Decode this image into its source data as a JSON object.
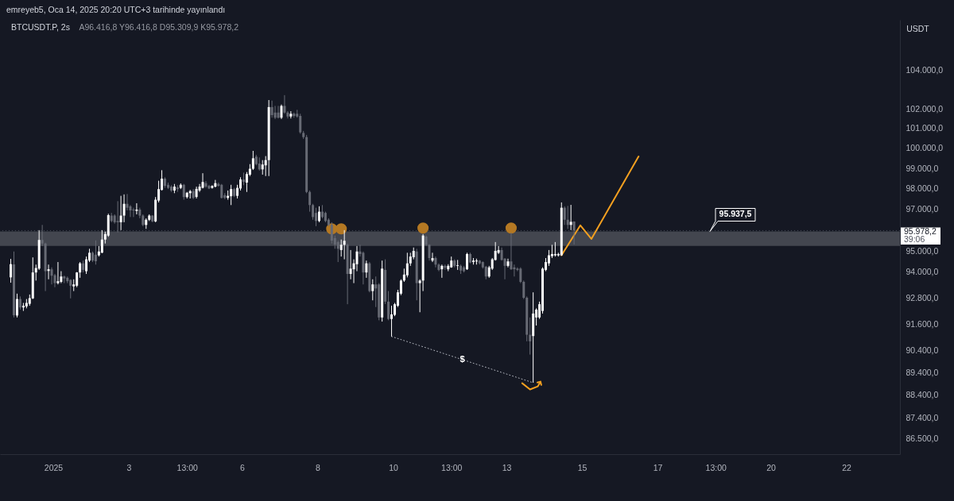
{
  "chart_data": {
    "type": "candlestick",
    "title": "BTCUSDT.P, 2s",
    "subtitle": "A96.416,8 Y96.416,8 D95.309,9 K95.978,2",
    "ylabel": "USDT",
    "annotations": [
      "emreyeb5, Oca 14, 2025 20:20 UTC+3 tarihinde yayınlandı",
      {
        "text": "95.937,5",
        "x": "2025-01-18T09:20",
        "y": 95937.5
      }
    ],
    "xlim": [
      "2024-12-30T14:09",
      "2025-01-23T10:06"
    ],
    "xticks": [
      {
        "value": "2025-01-01T00:00",
        "label": "2025"
      },
      {
        "value": "2025-01-03T00:00",
        "label": "3"
      },
      {
        "value": "2025-01-04T13:00",
        "label": "13:00"
      },
      {
        "value": "2025-01-06T00:00",
        "label": "6"
      },
      {
        "value": "2025-01-08T00:00",
        "label": "8"
      },
      {
        "value": "2025-01-10T00:00",
        "label": "10"
      },
      {
        "value": "2025-01-11T13:00",
        "label": "13:00"
      },
      {
        "value": "2025-01-13T00:00",
        "label": "13"
      },
      {
        "value": "2025-01-15T00:00",
        "label": "15"
      },
      {
        "value": "2025-01-17T00:00",
        "label": "17"
      },
      {
        "value": "2025-01-18T13:00",
        "label": "13:00"
      },
      {
        "value": "2025-01-20T00:00",
        "label": "20"
      },
      {
        "value": "2025-01-22T00:00",
        "label": "22"
      }
    ],
    "ylim": [
      85830,
      106640
    ],
    "yticks": [
      {
        "value": 86500,
        "label": "86.500,0"
      },
      {
        "value": 87400,
        "label": "87.400,0"
      },
      {
        "value": 88400,
        "label": "88.400,0"
      },
      {
        "value": 89400,
        "label": "89.400,0"
      },
      {
        "value": 90400,
        "label": "90.400,0"
      },
      {
        "value": 91600,
        "label": "91.600,0"
      },
      {
        "value": 92800,
        "label": "92.800,0"
      },
      {
        "value": 94000,
        "label": "94.000,0"
      },
      {
        "value": 95000,
        "label": "95.000,0"
      },
      {
        "value": 97000,
        "label": "97.000,0"
      },
      {
        "value": 98000,
        "label": "98.000,0"
      },
      {
        "value": 99000,
        "label": "99.000,0"
      },
      {
        "value": 100000,
        "label": "100.000,0"
      },
      {
        "value": 101000,
        "label": "101.000,0"
      },
      {
        "value": 102000,
        "label": "102.000,0"
      },
      {
        "value": 104000,
        "label": "104.000,0"
      }
    ],
    "log": "y",
    "series": [
      {
        "x": [
          "2024-12-30T21:00",
          "2024-12-30T23:00",
          "2024-12-31T01:00",
          "2024-12-31T03:00",
          "2024-12-31T05:00",
          "2024-12-31T07:00",
          "2024-12-31T09:00",
          "2024-12-31T11:00",
          "2024-12-31T13:00",
          "2024-12-31T15:00",
          "2024-12-31T17:00",
          "2024-12-31T19:00",
          "2024-12-31T21:00",
          "2024-12-31T23:00",
          "2025-01-01T01:00",
          "2025-01-01T03:00",
          "2025-01-01T05:00",
          "2025-01-01T07:00",
          "2025-01-01T09:00",
          "2025-01-01T11:00",
          "2025-01-01T13:00",
          "2025-01-01T15:00",
          "2025-01-01T17:00",
          "2025-01-01T19:00",
          "2025-01-01T21:00",
          "2025-01-01T23:00",
          "2025-01-02T01:00",
          "2025-01-02T03:00",
          "2025-01-02T05:00",
          "2025-01-02T07:00",
          "2025-01-02T09:00",
          "2025-01-02T11:00",
          "2025-01-02T13:00",
          "2025-01-02T15:00",
          "2025-01-02T17:00",
          "2025-01-02T19:00",
          "2025-01-02T21:00",
          "2025-01-02T23:00",
          "2025-01-03T01:00",
          "2025-01-03T03:00",
          "2025-01-03T05:00",
          "2025-01-03T07:00",
          "2025-01-03T09:00",
          "2025-01-03T11:00",
          "2025-01-03T13:00",
          "2025-01-03T15:00",
          "2025-01-03T17:00",
          "2025-01-03T19:00",
          "2025-01-03T21:00",
          "2025-01-03T23:00",
          "2025-01-04T01:00",
          "2025-01-04T03:00",
          "2025-01-04T05:00",
          "2025-01-04T07:00",
          "2025-01-04T09:00",
          "2025-01-04T11:00",
          "2025-01-04T13:00",
          "2025-01-04T15:00",
          "2025-01-04T17:00",
          "2025-01-04T19:00",
          "2025-01-04T21:00",
          "2025-01-04T23:00",
          "2025-01-05T01:00",
          "2025-01-05T03:00",
          "2025-01-05T05:00",
          "2025-01-05T07:00",
          "2025-01-05T09:00",
          "2025-01-05T11:00",
          "2025-01-05T13:00",
          "2025-01-05T15:00",
          "2025-01-05T17:00",
          "2025-01-05T19:00",
          "2025-01-05T21:00",
          "2025-01-05T23:00",
          "2025-01-06T01:00",
          "2025-01-06T03:00",
          "2025-01-06T05:00",
          "2025-01-06T07:00",
          "2025-01-06T09:00",
          "2025-01-06T11:00",
          "2025-01-06T13:00",
          "2025-01-06T15:00",
          "2025-01-06T17:00",
          "2025-01-06T19:00",
          "2025-01-06T21:00",
          "2025-01-06T23:00",
          "2025-01-07T01:00",
          "2025-01-07T03:00",
          "2025-01-07T05:00",
          "2025-01-07T07:00",
          "2025-01-07T09:00",
          "2025-01-07T11:00",
          "2025-01-07T13:00",
          "2025-01-07T15:00",
          "2025-01-07T17:00",
          "2025-01-07T19:00",
          "2025-01-07T21:00",
          "2025-01-07T23:00",
          "2025-01-08T01:00",
          "2025-01-08T03:00",
          "2025-01-08T05:00",
          "2025-01-08T07:00",
          "2025-01-08T09:00",
          "2025-01-08T11:00",
          "2025-01-08T13:00",
          "2025-01-08T15:00",
          "2025-01-08T17:00",
          "2025-01-08T19:00",
          "2025-01-08T21:00",
          "2025-01-08T23:00",
          "2025-01-09T01:00",
          "2025-01-09T03:00",
          "2025-01-09T05:00",
          "2025-01-09T07:00",
          "2025-01-09T09:00",
          "2025-01-09T11:00",
          "2025-01-09T13:00",
          "2025-01-09T15:00",
          "2025-01-09T17:00",
          "2025-01-09T19:00",
          "2025-01-09T21:00",
          "2025-01-09T23:00",
          "2025-01-10T01:00",
          "2025-01-10T03:00",
          "2025-01-10T05:00",
          "2025-01-10T07:00",
          "2025-01-10T09:00",
          "2025-01-10T11:00",
          "2025-01-10T13:00",
          "2025-01-10T15:00",
          "2025-01-10T17:00",
          "2025-01-10T19:00",
          "2025-01-10T21:00",
          "2025-01-10T23:00",
          "2025-01-11T01:00",
          "2025-01-11T03:00",
          "2025-01-11T05:00",
          "2025-01-11T07:00",
          "2025-01-11T09:00",
          "2025-01-11T11:00",
          "2025-01-11T13:00",
          "2025-01-11T15:00",
          "2025-01-11T17:00",
          "2025-01-11T19:00",
          "2025-01-11T21:00",
          "2025-01-11T23:00",
          "2025-01-12T01:00",
          "2025-01-12T03:00",
          "2025-01-12T05:00",
          "2025-01-12T07:00",
          "2025-01-12T09:00",
          "2025-01-12T11:00",
          "2025-01-12T13:00",
          "2025-01-12T15:00",
          "2025-01-12T17:00",
          "2025-01-12T19:00",
          "2025-01-12T21:00",
          "2025-01-12T23:00",
          "2025-01-13T01:00",
          "2025-01-13T03:00",
          "2025-01-13T05:00",
          "2025-01-13T07:00",
          "2025-01-13T09:00",
          "2025-01-13T11:00",
          "2025-01-13T13:00",
          "2025-01-13T15:00",
          "2025-01-13T17:00",
          "2025-01-13T19:00",
          "2025-01-13T21:00",
          "2025-01-13T23:00",
          "2025-01-14T01:00",
          "2025-01-14T03:00",
          "2025-01-14T05:00",
          "2025-01-14T07:00",
          "2025-01-14T09:00",
          "2025-01-14T11:00",
          "2025-01-14T13:00",
          "2025-01-14T15:00",
          "2025-01-14T17:00",
          "2025-01-14T19:00"
        ],
        "ohlc": [
          [
            93760,
            94630,
            93510,
            94380
          ],
          [
            94370,
            94980,
            91900,
            92000
          ],
          [
            91990,
            93000,
            91900,
            92750
          ],
          [
            92750,
            92870,
            92260,
            92360
          ],
          [
            92360,
            92570,
            92200,
            92440
          ],
          [
            92410,
            92750,
            92320,
            92570
          ],
          [
            92530,
            92960,
            92440,
            92790
          ],
          [
            92780,
            94700,
            92750,
            93990
          ],
          [
            93990,
            94360,
            93610,
            94200
          ],
          [
            94170,
            96000,
            94110,
            95530
          ],
          [
            95530,
            96250,
            95240,
            95360
          ],
          [
            95360,
            95400,
            93120,
            94050
          ],
          [
            94060,
            94360,
            93670,
            94140
          ],
          [
            94140,
            94230,
            93430,
            93840
          ],
          [
            93860,
            93920,
            93300,
            93490
          ],
          [
            93490,
            94480,
            93430,
            93580
          ],
          [
            93550,
            94050,
            93490,
            93800
          ],
          [
            93800,
            93840,
            93490,
            93710
          ],
          [
            93740,
            93800,
            93490,
            93580
          ],
          [
            93640,
            93670,
            92780,
            93370
          ],
          [
            93340,
            93670,
            93120,
            93430
          ],
          [
            93370,
            94010,
            93300,
            93990
          ],
          [
            93990,
            94480,
            93740,
            94420
          ],
          [
            94420,
            94550,
            93990,
            94110
          ],
          [
            94050,
            94740,
            93920,
            94610
          ],
          [
            94550,
            95110,
            94480,
            94920
          ],
          [
            94920,
            94980,
            94480,
            94550
          ],
          [
            94830,
            95510,
            94360,
            94520
          ],
          [
            94800,
            95240,
            94740,
            94980
          ],
          [
            94920,
            96000,
            94900,
            95550
          ],
          [
            95550,
            95930,
            95360,
            95810
          ],
          [
            95740,
            96790,
            95680,
            96720
          ],
          [
            96700,
            96830,
            96380,
            96440
          ],
          [
            96700,
            96760,
            96310,
            96380
          ],
          [
            96440,
            97400,
            95890,
            96380
          ],
          [
            96380,
            97660,
            96000,
            96700
          ],
          [
            96700,
            97730,
            96380,
            97270
          ],
          [
            97270,
            97750,
            96950,
            97080
          ],
          [
            97150,
            97210,
            96630,
            96950
          ],
          [
            96990,
            97080,
            96630,
            96950
          ],
          [
            96930,
            97300,
            96760,
            96990
          ],
          [
            96990,
            97080,
            96570,
            96700
          ],
          [
            96700,
            96760,
            96190,
            96250
          ],
          [
            96250,
            96570,
            96060,
            96500
          ],
          [
            96500,
            96760,
            96440,
            96700
          ],
          [
            96700,
            96720,
            96380,
            96420
          ],
          [
            96420,
            97600,
            96380,
            97470
          ],
          [
            97430,
            98400,
            97340,
            97990
          ],
          [
            97950,
            98920,
            97920,
            98500
          ],
          [
            98500,
            98570,
            98050,
            98150
          ],
          [
            98200,
            98310,
            97990,
            98050
          ],
          [
            98110,
            98180,
            97850,
            97920
          ],
          [
            97920,
            98240,
            97790,
            98110
          ],
          [
            98070,
            98180,
            97850,
            97990
          ],
          [
            98050,
            98270,
            97990,
            98200
          ],
          [
            98200,
            98240,
            97470,
            97600
          ],
          [
            97600,
            97850,
            97530,
            97810
          ],
          [
            97790,
            97950,
            97530,
            97890
          ],
          [
            97890,
            97990,
            97500,
            97560
          ],
          [
            97610,
            98110,
            97530,
            98000
          ],
          [
            97920,
            98240,
            97850,
            98110
          ],
          [
            98050,
            98770,
            98020,
            98340
          ],
          [
            98280,
            98380,
            98050,
            98110
          ],
          [
            98150,
            98200,
            97990,
            98020
          ],
          [
            98050,
            98180,
            98010,
            98140
          ],
          [
            98110,
            98440,
            98070,
            98280
          ],
          [
            98240,
            98310,
            98110,
            98150
          ],
          [
            98200,
            98240,
            97530,
            97560
          ],
          [
            97690,
            97790,
            97500,
            97560
          ],
          [
            97560,
            97920,
            97470,
            97660
          ],
          [
            97640,
            98200,
            97210,
            97990
          ],
          [
            97990,
            98050,
            97600,
            97660
          ],
          [
            97660,
            98200,
            97530,
            98050
          ],
          [
            98020,
            98570,
            97920,
            98460
          ],
          [
            98460,
            98800,
            98180,
            98340
          ],
          [
            98310,
            98830,
            97850,
            98730
          ],
          [
            98700,
            99220,
            98630,
            98990
          ],
          [
            98990,
            99880,
            98930,
            99510
          ],
          [
            99590,
            99680,
            99160,
            99220
          ],
          [
            99250,
            99550,
            98900,
            98960
          ],
          [
            98960,
            99420,
            98700,
            99200
          ],
          [
            99160,
            99620,
            98630,
            99420
          ],
          [
            99420,
            102450,
            98630,
            102090
          ],
          [
            102090,
            102420,
            101550,
            101680
          ],
          [
            101810,
            102150,
            101480,
            101550
          ],
          [
            101810,
            102150,
            101510,
            101550
          ],
          [
            101550,
            102220,
            101480,
            102150
          ],
          [
            102150,
            102700,
            101750,
            101810
          ],
          [
            101810,
            101880,
            101510,
            101610
          ],
          [
            101610,
            101880,
            101510,
            101750
          ],
          [
            101750,
            101810,
            101550,
            101640
          ],
          [
            101750,
            101950,
            101550,
            101610
          ],
          [
            101640,
            101750,
            100740,
            100810
          ],
          [
            100780,
            100880,
            100480,
            100570
          ],
          [
            100570,
            100680,
            97790,
            97850
          ],
          [
            97850,
            97920,
            96890,
            97210
          ],
          [
            97210,
            97270,
            96500,
            96630
          ],
          [
            96830,
            97080,
            96190,
            96440
          ],
          [
            96440,
            97150,
            96380,
            96890
          ],
          [
            96890,
            97210,
            96570,
            96630
          ],
          [
            96830,
            96890,
            96380,
            96440
          ],
          [
            96500,
            96570,
            96190,
            96250
          ],
          [
            96260,
            96380,
            95360,
            95500
          ],
          [
            95620,
            95740,
            95110,
            95310
          ],
          [
            95430,
            95490,
            94480,
            95110
          ],
          [
            95050,
            95550,
            94740,
            95300
          ],
          [
            95300,
            96000,
            94610,
            95490
          ],
          [
            95300,
            95360,
            92510,
            93920
          ],
          [
            93920,
            95050,
            93670,
            94170
          ],
          [
            94140,
            94610,
            93490,
            94420
          ],
          [
            94380,
            95240,
            94050,
            94980
          ],
          [
            94980,
            95300,
            94740,
            94860
          ],
          [
            94920,
            94980,
            93430,
            93990
          ],
          [
            93990,
            94550,
            93740,
            94420
          ],
          [
            94420,
            94480,
            93060,
            93120
          ],
          [
            93120,
            93670,
            92690,
            93430
          ],
          [
            93430,
            93800,
            92380,
            93240
          ],
          [
            93430,
            93490,
            91770,
            91900
          ],
          [
            91900,
            94550,
            91710,
            94170
          ],
          [
            94110,
            94610,
            92520,
            92630
          ],
          [
            92630,
            93120,
            91770,
            91830
          ],
          [
            91830,
            92440,
            91030,
            92040
          ],
          [
            92020,
            92570,
            91960,
            92510
          ],
          [
            92440,
            93180,
            92380,
            93060
          ],
          [
            93000,
            93670,
            92930,
            93610
          ],
          [
            93610,
            94170,
            93550,
            93890
          ],
          [
            93860,
            94920,
            93760,
            94420
          ],
          [
            94420,
            94920,
            94300,
            94740
          ],
          [
            94710,
            95170,
            94610,
            95010
          ],
          [
            94980,
            95110,
            92690,
            93490
          ],
          [
            93490,
            93670,
            92140,
            93610
          ],
          [
            93610,
            95810,
            93120,
            95740
          ],
          [
            95690,
            95740,
            95240,
            95300
          ],
          [
            95300,
            95320,
            94550,
            94670
          ],
          [
            94550,
            94920,
            94480,
            94670
          ],
          [
            94670,
            94740,
            94230,
            94360
          ],
          [
            94360,
            94420,
            94050,
            94110
          ],
          [
            94140,
            94360,
            93740,
            94300
          ],
          [
            94300,
            94360,
            94110,
            94210
          ],
          [
            94140,
            94380,
            94050,
            94300
          ],
          [
            94230,
            94740,
            94210,
            94550
          ],
          [
            94550,
            94610,
            94230,
            94300
          ],
          [
            94300,
            94580,
            94110,
            94330
          ],
          [
            94300,
            94360,
            93920,
            94080
          ],
          [
            94230,
            94300,
            93990,
            94050
          ],
          [
            94140,
            94920,
            94110,
            94860
          ],
          [
            94860,
            94920,
            94420,
            94460
          ],
          [
            94480,
            94670,
            94360,
            94550
          ],
          [
            94510,
            94640,
            94360,
            94550
          ],
          [
            94550,
            94580,
            94360,
            94420
          ],
          [
            94480,
            94510,
            94170,
            94230
          ],
          [
            94260,
            94300,
            93670,
            93800
          ],
          [
            93800,
            94300,
            93740,
            94230
          ],
          [
            94170,
            94670,
            94110,
            94610
          ],
          [
            94580,
            95430,
            94550,
            95010
          ],
          [
            94920,
            95240,
            94860,
            95050
          ],
          [
            95050,
            95170,
            94550,
            94580
          ],
          [
            94640,
            94670,
            93670,
            94300
          ],
          [
            94300,
            94640,
            94230,
            94510
          ],
          [
            94510,
            95880,
            94110,
            94140
          ],
          [
            94230,
            94360,
            93800,
            94140
          ],
          [
            94170,
            94230,
            94050,
            94110
          ],
          [
            94170,
            94230,
            93490,
            93550
          ],
          [
            93550,
            93610,
            92750,
            92810
          ],
          [
            92810,
            92870,
            90810,
            91110
          ],
          [
            91110,
            91900,
            90210,
            90810
          ],
          [
            91050,
            93060,
            88950,
            92080
          ],
          [
            91900,
            92320,
            91530,
            92260
          ],
          [
            91900,
            92630,
            91830,
            92510
          ],
          [
            92200,
            94230,
            92080,
            94170
          ],
          [
            94110,
            94670,
            94050,
            94480
          ],
          [
            94420,
            95050,
            94300,
            94800
          ],
          [
            94760,
            95300,
            94670,
            94860
          ],
          [
            94800,
            95430,
            94740,
            94860
          ],
          [
            94800,
            94920,
            94740,
            94860
          ],
          [
            94800,
            97340,
            94780,
            97080
          ],
          [
            97080,
            97150,
            96250,
            96500
          ],
          [
            96500,
            97170,
            96060,
            96250
          ],
          [
            96250,
            97220,
            96000,
            96400
          ],
          [
            96416.8,
            96416.8,
            95309.9,
            95978.2
          ]
        ],
        "colors": [
          "#ffffff",
          "#676a74",
          "#ffffff",
          "#676a74",
          "#ffffff",
          "#ffffff",
          "#ffffff",
          "#ffffff",
          "#ffffff",
          "#ffffff",
          "#676a74",
          "#676a74",
          "#ffffff",
          "#676a74",
          "#676a74",
          "#ffffff",
          "#ffffff",
          "#676a74",
          "#676a74",
          "#676a74",
          "#ffffff",
          "#ffffff",
          "#ffffff",
          "#676a74",
          "#ffffff",
          "#ffffff",
          "#676a74",
          "#676a74",
          "#ffffff",
          "#ffffff",
          "#ffffff",
          "#ffffff",
          "#676a74",
          "#676a74",
          "#676a74",
          "#ffffff",
          "#ffffff",
          "#676a74",
          "#676a74",
          "#676a74",
          "#ffffff",
          "#676a74",
          "#676a74",
          "#ffffff",
          "#ffffff",
          "#676a74",
          "#ffffff",
          "#ffffff",
          "#ffffff",
          "#676a74",
          "#676a74",
          "#676a74",
          "#ffffff",
          "#676a74",
          "#ffffff",
          "#676a74",
          "#ffffff",
          "#ffffff",
          "#676a74",
          "#ffffff",
          "#ffffff",
          "#ffffff",
          "#676a74",
          "#676a74",
          "#ffffff",
          "#ffffff",
          "#676a74",
          "#676a74",
          "#676a74",
          "#ffffff",
          "#ffffff",
          "#676a74",
          "#ffffff",
          "#ffffff",
          "#676a74",
          "#ffffff",
          "#ffffff",
          "#ffffff",
          "#676a74",
          "#676a74",
          "#ffffff",
          "#ffffff",
          "#ffffff",
          "#676a74",
          "#676a74",
          "#676a74",
          "#ffffff",
          "#676a74",
          "#676a74",
          "#ffffff",
          "#676a74",
          "#676a74",
          "#676a74",
          "#676a74",
          "#676a74",
          "#676a74",
          "#676a74",
          "#676a74",
          "#ffffff",
          "#676a74",
          "#676a74",
          "#676a74",
          "#676a74",
          "#676a74",
          "#676a74",
          "#ffffff",
          "#ffffff",
          "#676a74",
          "#ffffff",
          "#ffffff",
          "#ffffff",
          "#676a74",
          "#676a74",
          "#ffffff",
          "#676a74",
          "#ffffff",
          "#676a74",
          "#676a74",
          "#ffffff",
          "#676a74",
          "#676a74",
          "#ffffff",
          "#ffffff",
          "#ffffff",
          "#ffffff",
          "#ffffff",
          "#ffffff",
          "#ffffff",
          "#ffffff",
          "#676a74",
          "#ffffff",
          "#ffffff",
          "#676a74",
          "#676a74",
          "#ffffff",
          "#676a74",
          "#676a74",
          "#ffffff",
          "#676a74",
          "#ffffff",
          "#ffffff",
          "#676a74",
          "#ffffff",
          "#676a74",
          "#676a74",
          "#ffffff",
          "#676a74",
          "#ffffff",
          "#ffffff",
          "#676a74",
          "#676a74",
          "#676a74",
          "#ffffff",
          "#ffffff",
          "#ffffff",
          "#ffffff",
          "#676a74",
          "#676a74",
          "#ffffff",
          "#676a74",
          "#676a74",
          "#676a74",
          "#676a74",
          "#676a74",
          "#676a74",
          "#676a74",
          "#ffffff",
          "#ffffff",
          "#ffffff",
          "#ffffff",
          "#ffffff",
          "#ffffff",
          "#ffffff",
          "#ffffff",
          "#ffffff",
          "#ffffff",
          "#676a74",
          "#676a74",
          "#ffffff",
          "#676a74"
        ]
      },
      {
        "type": "scatter",
        "marker": "circle",
        "color": "#b47823",
        "x": [
          "2025-01-08T09:00",
          "2025-01-08T15:00",
          "2025-01-10T19:00",
          "2025-01-13T03:00"
        ],
        "values": [
          96060,
          96060,
          96100,
          96100
        ]
      },
      {
        "type": "line",
        "color": "#f4a020",
        "x": [
          "2025-01-14T11:00",
          "2025-01-14T23:00",
          "2025-01-15T06:00",
          "2025-01-16T12:00"
        ],
        "values": [
          94800,
          96230,
          95580,
          99600
        ]
      },
      {
        "type": "line",
        "name": "$",
        "color": "#b2b5be",
        "line_style": "dotted",
        "x": [
          "2025-01-09T23:00",
          "2025-01-13T17:00"
        ],
        "values": [
          91030,
          88950
        ]
      },
      {
        "type": "line",
        "color": "#f4a020",
        "x": [
          "2025-01-13T10:00",
          "2025-01-13T15:00",
          "2025-01-13T20:00",
          "2025-01-13T21:40",
          "2025-01-13T19:40",
          "2025-01-13T21:40",
          "2025-01-13T22:10"
        ],
        "values": [
          88930,
          88650,
          88790,
          89000,
          88960,
          89000,
          88850
        ]
      }
    ],
    "ref_lines": [
      {
        "axis": "y",
        "value": 95978.2,
        "label": "95.978,2\n39:06",
        "color": "#4a4e5a",
        "line_style": "dotted"
      }
    ],
    "bands": [
      {
        "axis": "y",
        "from": 95240,
        "to": 95937.5,
        "color": "#43464f"
      }
    ]
  }
}
